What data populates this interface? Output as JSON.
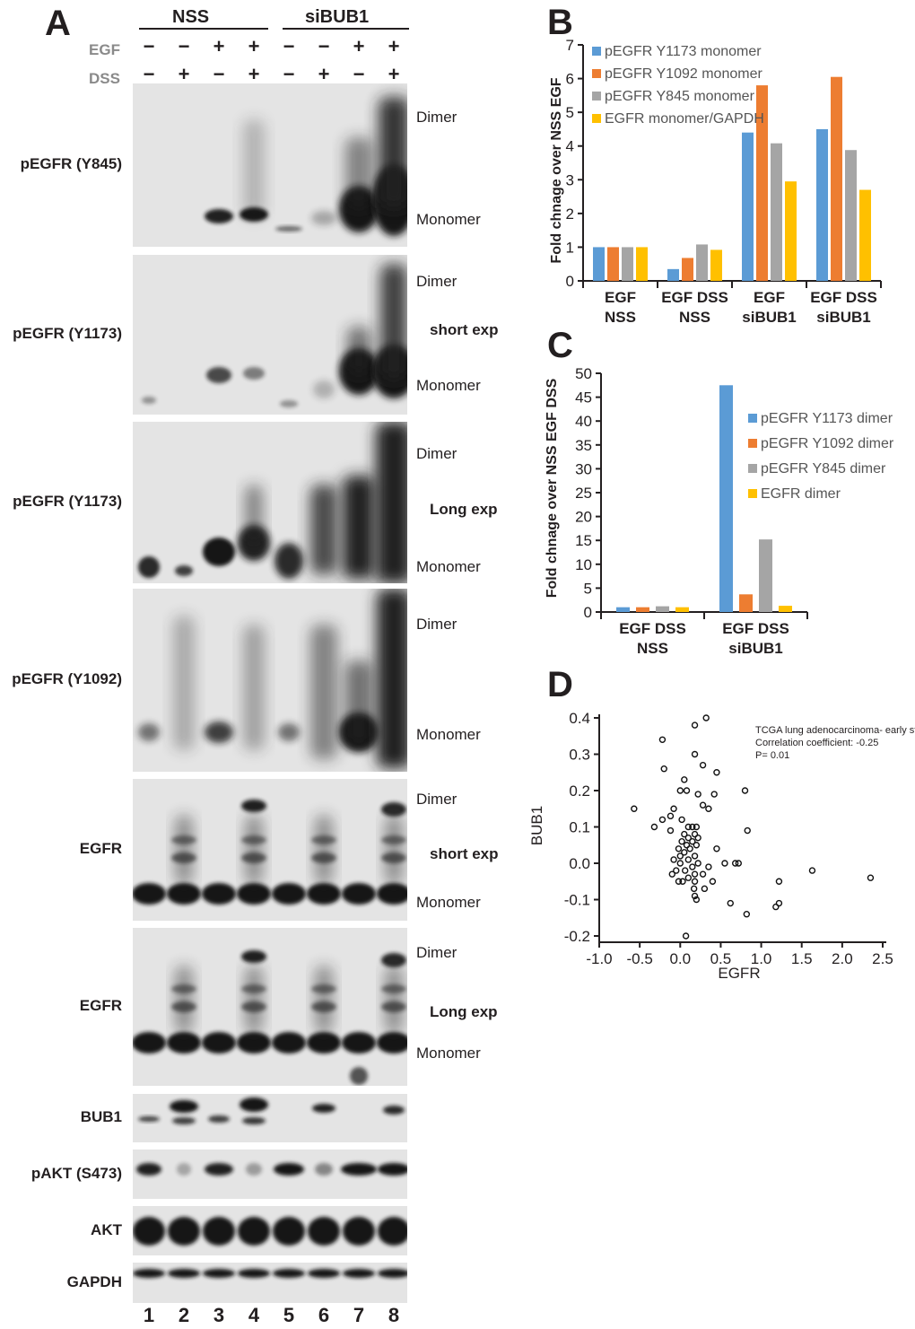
{
  "panel_a": {
    "letter": "A",
    "groups": [
      "NSS",
      "siBUB1"
    ],
    "conditions": [
      {
        "label": "EGF",
        "signs": [
          "−",
          "−",
          "+",
          "+",
          "−",
          "−",
          "+",
          "+"
        ]
      },
      {
        "label": "DSS",
        "signs": [
          "−",
          "+",
          "−",
          "+",
          "−",
          "+",
          "−",
          "+"
        ]
      }
    ],
    "lanes": [
      "1",
      "2",
      "3",
      "4",
      "5",
      "6",
      "7",
      "8"
    ],
    "blots": [
      {
        "label": "pEGFR (Y845)",
        "dimer": "Dimer",
        "exposure": "",
        "monomer": "Monomer"
      },
      {
        "label": "pEGFR (Y1173)",
        "dimer": "Dimer",
        "exposure": "short exp",
        "monomer": "Monomer"
      },
      {
        "label": "pEGFR (Y1173)",
        "dimer": "Dimer",
        "exposure": "Long exp",
        "monomer": "Monomer"
      },
      {
        "label": "pEGFR (Y1092)",
        "dimer": "Dimer",
        "exposure": "",
        "monomer": "Monomer"
      },
      {
        "label": "EGFR",
        "dimer": "Dimer",
        "exposure": "short exp",
        "monomer": "Monomer"
      },
      {
        "label": "EGFR",
        "dimer": "Dimer",
        "exposure": "Long exp",
        "monomer": "Monomer"
      },
      {
        "label": "BUB1"
      },
      {
        "label": "pAKT (S473)"
      },
      {
        "label": "AKT"
      },
      {
        "label": "GAPDH"
      }
    ]
  },
  "chart_data": [
    {
      "panel": "B",
      "type": "bar",
      "ylabel": "Fold chnage over NSS EGF",
      "ylim": [
        0,
        7
      ],
      "yticks": [
        "0",
        "1",
        "2",
        "3",
        "4",
        "5",
        "6",
        "7"
      ],
      "categories": [
        [
          "EGF",
          "NSS"
        ],
        [
          "EGF DSS",
          "NSS"
        ],
        [
          "EGF",
          "siBUB1"
        ],
        [
          "EGF DSS",
          "siBUB1"
        ]
      ],
      "legend_position": "top-left",
      "series": [
        {
          "name": "pEGFR Y1173 monomer",
          "color": "#5b9bd5",
          "values": [
            1.0,
            0.35,
            4.4,
            4.5
          ]
        },
        {
          "name": "pEGFR Y1092 monomer",
          "color": "#ed7d31",
          "values": [
            1.0,
            0.68,
            5.8,
            6.05
          ]
        },
        {
          "name": "pEGFR Y845 monomer",
          "color": "#a5a5a5",
          "values": [
            1.0,
            1.08,
            4.08,
            3.88
          ]
        },
        {
          "name": "EGFR monomer/GAPDH",
          "color": "#ffc000",
          "values": [
            1.0,
            0.92,
            2.95,
            2.7
          ]
        }
      ]
    },
    {
      "panel": "C",
      "type": "bar",
      "ylabel": "Fold chnage over NSS EGF DSS",
      "ylim": [
        0,
        50
      ],
      "yticks": [
        "0",
        "5",
        "10",
        "15",
        "20",
        "25",
        "30",
        "35",
        "40",
        "45",
        "50"
      ],
      "categories": [
        [
          "EGF DSS",
          "NSS"
        ],
        [
          "EGF DSS",
          "siBUB1"
        ]
      ],
      "legend_position": "right",
      "series": [
        {
          "name": "pEGFR Y1173 dimer",
          "color": "#5b9bd5",
          "values": [
            1.0,
            47.5
          ]
        },
        {
          "name": "pEGFR Y1092 dimer",
          "color": "#ed7d31",
          "values": [
            1.0,
            3.7
          ]
        },
        {
          "name": "pEGFR Y845 dimer",
          "color": "#a5a5a5",
          "values": [
            1.2,
            15.2
          ]
        },
        {
          "name": "EGFR dimer",
          "color": "#ffc000",
          "values": [
            1.0,
            1.3
          ]
        }
      ]
    },
    {
      "panel": "D",
      "type": "scatter",
      "xlabel": "EGFR",
      "ylabel": "BUB1",
      "xlim": [
        -1.0,
        2.5
      ],
      "ylim": [
        -0.2,
        0.4
      ],
      "xticks": [
        "-1.0",
        "-0.5",
        "0.0",
        "0.5",
        "1.0",
        "1.5",
        "2.0",
        "2.5"
      ],
      "yticks": [
        "-0.2",
        "-0.1",
        "0.0",
        "0.1",
        "0.2",
        "0.3",
        "0.4"
      ],
      "annotations": [
        "TCGA lung adenocarcinoma- early stage",
        "Correlation coefficient: -0.25",
        "P= 0.01"
      ],
      "points": [
        [
          0.32,
          0.4
        ],
        [
          0.18,
          0.38
        ],
        [
          -0.22,
          0.34
        ],
        [
          0.18,
          0.3
        ],
        [
          0.28,
          0.27
        ],
        [
          -0.2,
          0.26
        ],
        [
          0.45,
          0.25
        ],
        [
          0.05,
          0.23
        ],
        [
          0.0,
          0.2
        ],
        [
          0.08,
          0.2
        ],
        [
          0.22,
          0.19
        ],
        [
          0.8,
          0.2
        ],
        [
          0.42,
          0.19
        ],
        [
          -0.57,
          0.15
        ],
        [
          0.28,
          0.16
        ],
        [
          0.35,
          0.15
        ],
        [
          -0.08,
          0.15
        ],
        [
          -0.12,
          0.13
        ],
        [
          -0.22,
          0.12
        ],
        [
          0.02,
          0.12
        ],
        [
          -0.32,
          0.1
        ],
        [
          -0.12,
          0.09
        ],
        [
          0.1,
          0.1
        ],
        [
          0.15,
          0.1
        ],
        [
          0.2,
          0.1
        ],
        [
          0.05,
          0.08
        ],
        [
          0.18,
          0.08
        ],
        [
          0.83,
          0.09
        ],
        [
          0.1,
          0.07
        ],
        [
          0.22,
          0.07
        ],
        [
          0.02,
          0.06
        ],
        [
          0.15,
          0.06
        ],
        [
          0.08,
          0.05
        ],
        [
          0.2,
          0.05
        ],
        [
          -0.02,
          0.04
        ],
        [
          0.12,
          0.04
        ],
        [
          0.05,
          0.03
        ],
        [
          0.18,
          0.02
        ],
        [
          0.45,
          0.04
        ],
        [
          0.0,
          0.02
        ],
        [
          0.1,
          0.01
        ],
        [
          -0.08,
          0.01
        ],
        [
          0.22,
          0.0
        ],
        [
          0.0,
          0.0
        ],
        [
          0.15,
          -0.01
        ],
        [
          0.35,
          -0.01
        ],
        [
          0.68,
          0.0
        ],
        [
          0.72,
          0.0
        ],
        [
          0.06,
          -0.02
        ],
        [
          -0.05,
          -0.02
        ],
        [
          0.18,
          -0.03
        ],
        [
          -0.1,
          -0.03
        ],
        [
          0.28,
          -0.03
        ],
        [
          0.55,
          0.0
        ],
        [
          0.1,
          -0.04
        ],
        [
          0.18,
          -0.05
        ],
        [
          0.4,
          -0.05
        ],
        [
          0.03,
          -0.05
        ],
        [
          -0.02,
          -0.05
        ],
        [
          1.22,
          -0.05
        ],
        [
          2.35,
          -0.04
        ],
        [
          1.63,
          -0.02
        ],
        [
          0.17,
          -0.07
        ],
        [
          0.3,
          -0.07
        ],
        [
          0.18,
          -0.09
        ],
        [
          0.2,
          -0.1
        ],
        [
          0.62,
          -0.11
        ],
        [
          1.22,
          -0.11
        ],
        [
          1.18,
          -0.12
        ],
        [
          0.82,
          -0.14
        ],
        [
          0.07,
          -0.2
        ]
      ]
    }
  ]
}
